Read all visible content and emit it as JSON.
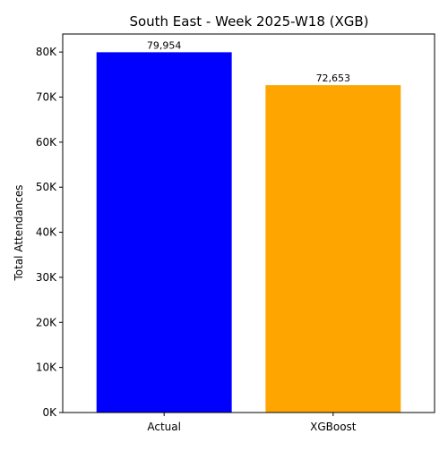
{
  "chart_data": {
    "type": "bar",
    "title": "South East - Week 2025-W18 (XGB)",
    "xlabel": "",
    "ylabel": "Total Attendances",
    "categories": [
      "Actual",
      "XGBoost"
    ],
    "values": [
      79954,
      72653
    ],
    "value_labels": [
      "79,954",
      "72,653"
    ],
    "colors": [
      "#0000ff",
      "#ffa500"
    ],
    "ylim": [
      0,
      84000
    ],
    "yticks": [
      0,
      10000,
      20000,
      30000,
      40000,
      50000,
      60000,
      70000,
      80000
    ],
    "ytick_labels": [
      "0K",
      "10K",
      "20K",
      "30K",
      "40K",
      "50K",
      "60K",
      "70K",
      "80K"
    ],
    "grid": false,
    "legend": "none"
  }
}
